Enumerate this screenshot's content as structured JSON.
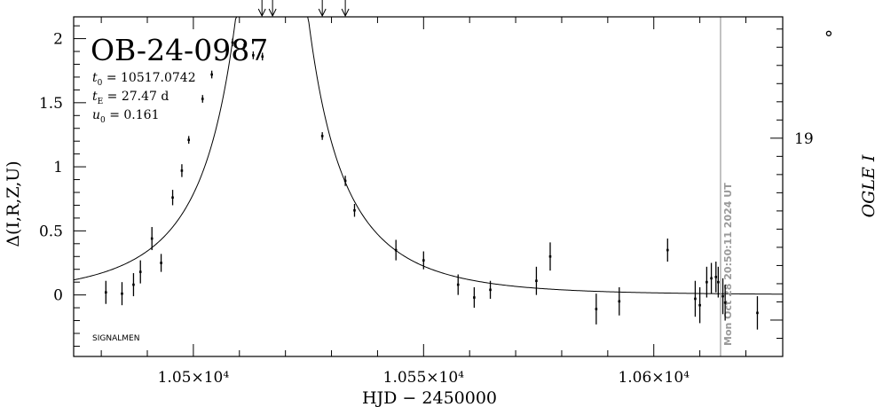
{
  "chart_data": {
    "type": "scatter",
    "title": "OB-24-0987",
    "xlabel": "HJD − 2450000",
    "ylabel": "Δ(I,R,Z,U)",
    "ylabel_right": "OGLE I",
    "xlim": [
      10474,
      10628
    ],
    "ylim": [
      -0.48,
      2.17
    ],
    "ylim_right_mag": [
      18.333,
      20.2
    ],
    "x_ticks": [
      {
        "value": 10500,
        "label": "1.05×10⁴"
      },
      {
        "value": 10550,
        "label": "1.055×10⁴"
      },
      {
        "value": 10600,
        "label": "1.06×10⁴"
      }
    ],
    "y_ticks": [
      {
        "value": 0,
        "label": "0"
      },
      {
        "value": 0.5,
        "label": "0.5"
      },
      {
        "value": 1,
        "label": "1"
      },
      {
        "value": 1.5,
        "label": "1.5"
      },
      {
        "value": 2,
        "label": "2"
      }
    ],
    "y_ticks_right": [
      {
        "value": 18,
        "label": "18"
      },
      {
        "value": 19,
        "label": "19"
      }
    ],
    "params": [
      {
        "sym": "t",
        "sub": "0",
        "text": " = 10517.0742"
      },
      {
        "sym": "t",
        "sub": "E",
        "text": " = 27.47 d"
      },
      {
        "sym": "u",
        "sub": "0",
        "text": " = 0.161"
      }
    ],
    "model": {
      "t0": 10517.0742,
      "tE": 27.47,
      "u0": 0.161
    },
    "survey_label": "SIGNALMEN",
    "date_stamp": "Mon Oct 28 20:50:11 2024 UT",
    "now_x": 10614.5,
    "arrows_x": [
      10514.9,
      10517.2,
      10528.0,
      10533.0
    ],
    "points": [
      {
        "x": 10481.0,
        "y": 0.02,
        "e": 0.09
      },
      {
        "x": 10484.5,
        "y": 0.01,
        "e": 0.09
      },
      {
        "x": 10487.0,
        "y": 0.08,
        "e": 0.09
      },
      {
        "x": 10488.5,
        "y": 0.18,
        "e": 0.09
      },
      {
        "x": 10491.0,
        "y": 0.44,
        "e": 0.09
      },
      {
        "x": 10493.0,
        "y": 0.25,
        "e": 0.07
      },
      {
        "x": 10495.5,
        "y": 0.76,
        "e": 0.06
      },
      {
        "x": 10497.5,
        "y": 0.97,
        "e": 0.05
      },
      {
        "x": 10499.0,
        "y": 1.21,
        "e": 0.03
      },
      {
        "x": 10502.0,
        "y": 1.53,
        "e": 0.03
      },
      {
        "x": 10504.0,
        "y": 1.72,
        "e": 0.03
      },
      {
        "x": 10508.5,
        "y": 1.97,
        "e": 0.03
      },
      {
        "x": 10511.0,
        "y": 1.93,
        "e": 0.03
      },
      {
        "x": 10513.0,
        "y": 1.87,
        "e": 0.03
      },
      {
        "x": 10515.0,
        "y": 1.86,
        "e": 0.03
      },
      {
        "x": 10528.0,
        "y": 1.24,
        "e": 0.03
      },
      {
        "x": 10533.0,
        "y": 0.89,
        "e": 0.04
      },
      {
        "x": 10535.0,
        "y": 0.66,
        "e": 0.05
      },
      {
        "x": 10544.0,
        "y": 0.35,
        "e": 0.08
      },
      {
        "x": 10550.0,
        "y": 0.27,
        "e": 0.07
      },
      {
        "x": 10557.5,
        "y": 0.08,
        "e": 0.08
      },
      {
        "x": 10561.0,
        "y": -0.02,
        "e": 0.08
      },
      {
        "x": 10564.5,
        "y": 0.04,
        "e": 0.07
      },
      {
        "x": 10574.5,
        "y": 0.11,
        "e": 0.11
      },
      {
        "x": 10577.5,
        "y": 0.3,
        "e": 0.11
      },
      {
        "x": 10587.5,
        "y": -0.11,
        "e": 0.12
      },
      {
        "x": 10592.5,
        "y": -0.05,
        "e": 0.11
      },
      {
        "x": 10603.0,
        "y": 0.35,
        "e": 0.09
      },
      {
        "x": 10609.0,
        "y": -0.03,
        "e": 0.14
      },
      {
        "x": 10610.0,
        "y": -0.08,
        "e": 0.14
      },
      {
        "x": 10611.5,
        "y": 0.1,
        "e": 0.12
      },
      {
        "x": 10612.5,
        "y": 0.13,
        "e": 0.12
      },
      {
        "x": 10613.5,
        "y": 0.14,
        "e": 0.12
      },
      {
        "x": 10614.0,
        "y": 0.1,
        "e": 0.12
      },
      {
        "x": 10615.0,
        "y": -0.01,
        "e": 0.14
      },
      {
        "x": 10615.5,
        "y": -0.06,
        "e": 0.14
      },
      {
        "x": 10622.5,
        "y": -0.14,
        "e": 0.13
      }
    ],
    "open_points": [
      {
        "x": 10638.0,
        "y": 2.04
      }
    ]
  }
}
